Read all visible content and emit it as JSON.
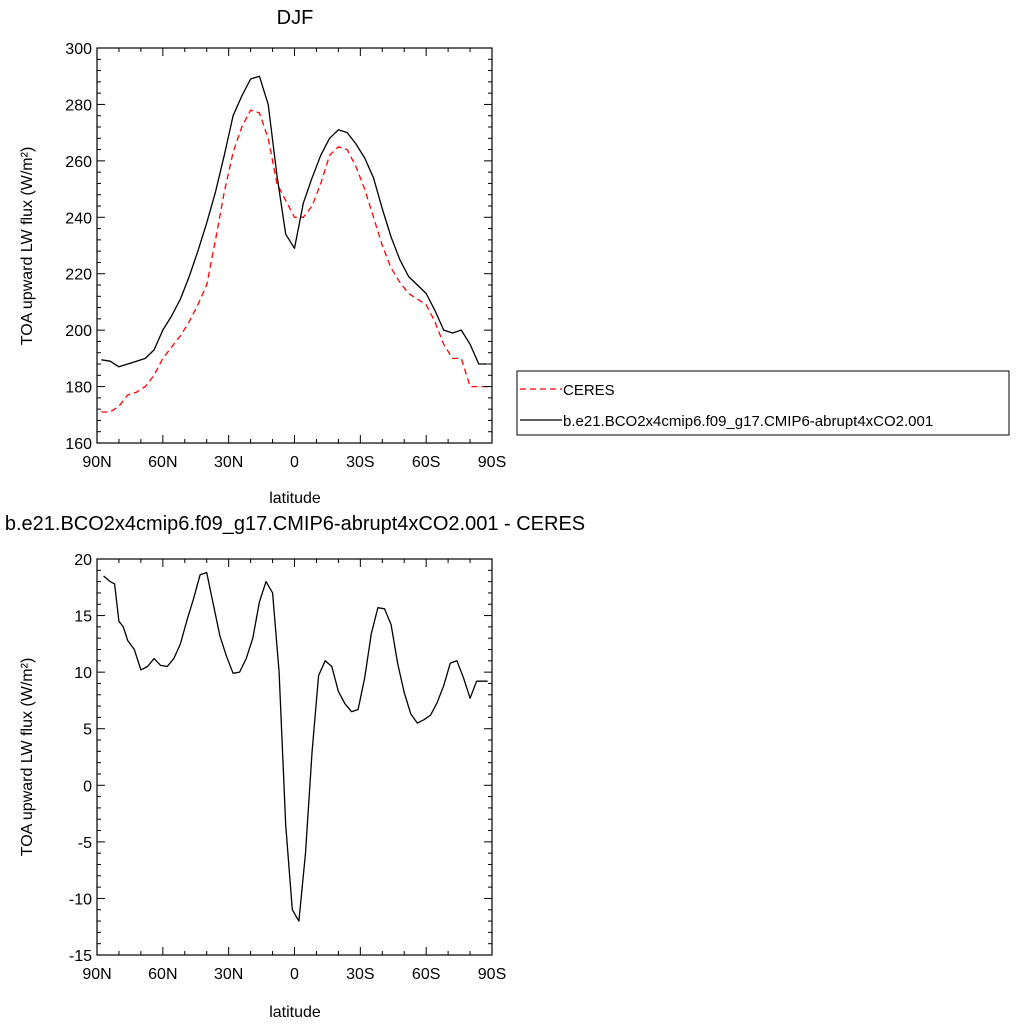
{
  "chart_data": [
    {
      "type": "line",
      "title": "DJF",
      "xlabel": "latitude",
      "ylabel": "TOA upward LW flux (W/m²)",
      "x_tick_values": [
        -90,
        -60,
        -30,
        0,
        30,
        60,
        90
      ],
      "x_tick_labels": [
        "90N",
        "60N",
        "30N",
        "0",
        "30S",
        "60S",
        "90S"
      ],
      "xlim": [
        -90,
        90
      ],
      "ylim": [
        160,
        300
      ],
      "y_ticks": [
        160,
        180,
        200,
        220,
        240,
        260,
        280,
        300
      ],
      "grid": false,
      "legend_position": "right",
      "x": [
        -88,
        -84,
        -80,
        -76,
        -72,
        -68,
        -64,
        -60,
        -56,
        -52,
        -48,
        -44,
        -40,
        -36,
        -32,
        -28,
        -24,
        -20,
        -16,
        -12,
        -8,
        -4,
        0,
        4,
        8,
        12,
        16,
        20,
        24,
        28,
        32,
        36,
        40,
        44,
        48,
        52,
        56,
        60,
        64,
        68,
        72,
        76,
        80,
        84,
        88
      ],
      "series": [
        {
          "name": "CERES",
          "color": "#ff0000",
          "dash": "dashed",
          "values": [
            171,
            171,
            173,
            177,
            178,
            180,
            184,
            190,
            194,
            198,
            203,
            209,
            216,
            232,
            249,
            263,
            272,
            278,
            277,
            268,
            252,
            246,
            240,
            240,
            244,
            252,
            262,
            265,
            264,
            258,
            250,
            240,
            230,
            222,
            217,
            213,
            211,
            209,
            203,
            195,
            190,
            190,
            180,
            180,
            180
          ]
        },
        {
          "name": "b.e21.BCO2x4cmip6.f09_g17.CMIP6-abrupt4xCO2.001",
          "color": "#000000",
          "dash": "solid",
          "values": [
            189.5,
            189,
            187,
            188,
            189,
            190,
            193,
            200,
            205,
            211,
            219,
            228,
            238,
            249,
            262,
            276,
            283,
            289,
            290,
            280,
            255,
            234,
            229,
            245,
            254,
            262,
            268,
            271,
            270,
            266,
            261,
            254,
            243,
            233,
            225,
            219,
            216,
            213,
            207,
            200,
            199,
            200,
            195,
            188,
            188
          ]
        }
      ]
    },
    {
      "type": "line",
      "title": "b.e21.BCO2x4cmip6.f09_g17.CMIP6-abrupt4xCO2.001 - CERES",
      "xlabel": "latitude",
      "ylabel": "TOA upward LW flux (W/m²)",
      "x_tick_values": [
        -90,
        -60,
        -30,
        0,
        30,
        60,
        90
      ],
      "x_tick_labels": [
        "90N",
        "60N",
        "30N",
        "0",
        "30S",
        "60S",
        "90S"
      ],
      "xlim": [
        -90,
        90
      ],
      "ylim": [
        -15,
        20
      ],
      "y_ticks": [
        -15,
        -10,
        -5,
        0,
        5,
        10,
        15,
        20
      ],
      "grid": false,
      "x": [
        -87,
        -84,
        -82,
        -80,
        -78,
        -76,
        -73,
        -70,
        -67,
        -64,
        -61,
        -58,
        -55,
        -52,
        -49,
        -46,
        -43,
        -40,
        -37,
        -34,
        -31,
        -28,
        -25,
        -22,
        -19,
        -16,
        -13,
        -10,
        -7,
        -4,
        -1,
        2,
        5,
        8,
        11,
        14,
        17,
        20,
        23,
        26,
        29,
        32,
        35,
        38,
        41,
        44,
        47,
        50,
        53,
        56,
        59,
        62,
        65,
        68,
        71,
        74,
        77,
        80,
        83,
        86,
        88
      ],
      "series": [
        {
          "name": "",
          "color": "#000000",
          "dash": "solid",
          "values": [
            18.5,
            18,
            17.8,
            14.5,
            14,
            12.8,
            12,
            10.2,
            10.5,
            11.2,
            10.6,
            10.5,
            11.2,
            12.5,
            14.6,
            16.5,
            18.6,
            18.8,
            16,
            13.2,
            11.4,
            9.9,
            10,
            11.2,
            13,
            16.2,
            18,
            17,
            10,
            -3.5,
            -11,
            -12,
            -6,
            3,
            9.7,
            11,
            10.5,
            8.3,
            7.2,
            6.5,
            6.7,
            9.5,
            13.4,
            15.7,
            15.6,
            14.2,
            10.8,
            8.2,
            6.3,
            5.5,
            5.8,
            6.2,
            7.3,
            8.8,
            10.8,
            11,
            9.5,
            7.7,
            9.2,
            9.2,
            9.2
          ]
        }
      ]
    }
  ]
}
